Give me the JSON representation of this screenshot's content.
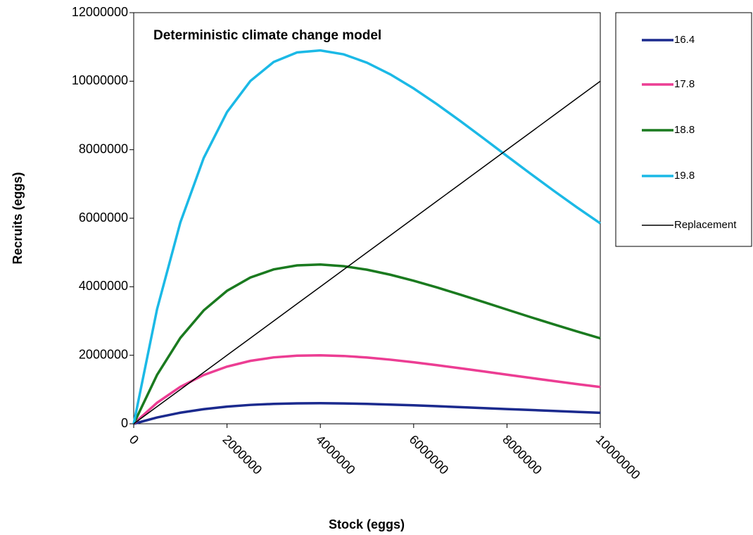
{
  "chart_data": {
    "type": "line",
    "title": "Deterministic climate change model",
    "x_label": "Stock (eggs)",
    "y_label": "Recruits (eggs)",
    "x": [
      0,
      500000,
      1000000,
      1500000,
      2000000,
      2500000,
      3000000,
      3500000,
      4000000,
      4500000,
      5000000,
      5500000,
      6000000,
      6500000,
      7000000,
      7500000,
      8000000,
      8500000,
      9000000,
      9500000,
      10000000
    ],
    "series": [
      {
        "name": "16.4",
        "color": "#1b2a8e",
        "values": [
          0,
          184000,
          324000,
          427000,
          501000,
          551000,
          581000,
          597000,
          600000,
          594000,
          580000,
          561000,
          539000,
          513000,
          486000,
          458000,
          430000,
          402000,
          375000,
          348000,
          322000
        ]
      },
      {
        "name": "17.8",
        "color": "#ec3d93",
        "values": [
          0,
          613000,
          1079000,
          1423000,
          1669000,
          1836000,
          1938000,
          1989000,
          1999000,
          1979000,
          1934000,
          1871000,
          1796000,
          1711000,
          1621000,
          1528000,
          1434000,
          1340000,
          1248000,
          1159000,
          1073000
        ]
      },
      {
        "name": "18.8",
        "color": "#1a7a1f",
        "values": [
          0,
          1426000,
          2508000,
          3309000,
          3881000,
          4269000,
          4506000,
          4624000,
          4649000,
          4601000,
          4497000,
          4351000,
          4176000,
          3979000,
          3769000,
          3553000,
          3334000,
          3116000,
          2903000,
          2695000,
          2496000
        ]
      },
      {
        "name": "19.8",
        "color": "#1bb9e6",
        "values": [
          0,
          3342000,
          5878000,
          7758000,
          9098000,
          10006000,
          10562000,
          10840000,
          10897000,
          10784000,
          10540000,
          10199000,
          9788000,
          9327000,
          8836000,
          8329000,
          7815000,
          7305000,
          6804000,
          6318000,
          5850000
        ]
      },
      {
        "name": "Replacement",
        "color": "#000000",
        "values": [
          0,
          500000,
          1000000,
          1500000,
          2000000,
          2500000,
          3000000,
          3500000,
          4000000,
          4500000,
          5000000,
          5500000,
          6000000,
          6500000,
          7000000,
          7500000,
          8000000,
          8500000,
          9000000,
          9500000,
          10000000
        ]
      }
    ],
    "xlim": [
      0,
      10000000
    ],
    "xticks": [
      0,
      2000000,
      4000000,
      6000000,
      8000000,
      10000000
    ],
    "ylim": [
      0,
      12000000
    ],
    "yticks": [
      0,
      2000000,
      4000000,
      6000000,
      8000000,
      10000000,
      12000000
    ],
    "grid": false,
    "legend": "right"
  }
}
